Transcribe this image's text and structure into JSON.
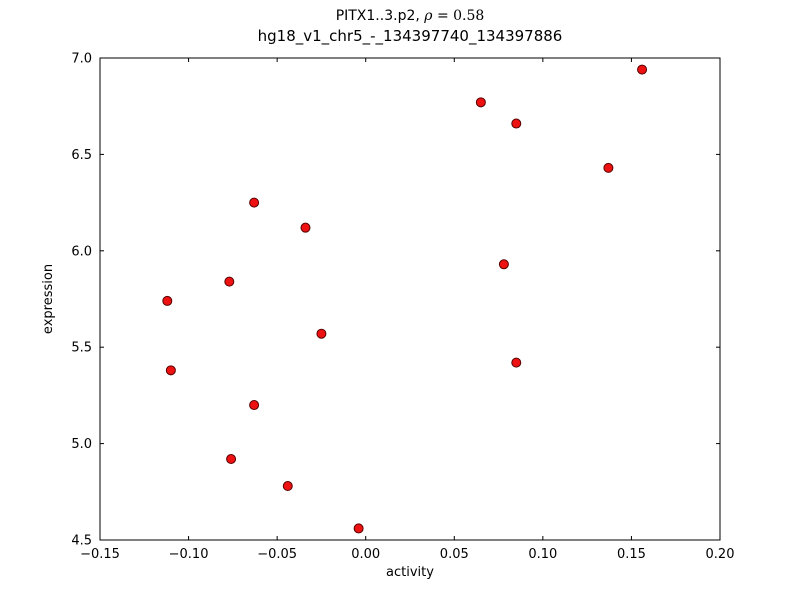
{
  "chart_data": {
    "type": "scatter",
    "title": {
      "prefix": "PITX1..3.p2, ",
      "rho": "ρ",
      "rho_value": " = 0.58",
      "line2": "hg18_v1_chr5_-_134397740_134397886"
    },
    "xlabel": "activity",
    "ylabel": "expression",
    "xlim": [
      -0.15,
      0.2
    ],
    "ylim": [
      4.5,
      7.0
    ],
    "xticks": [
      -0.15,
      -0.1,
      -0.05,
      0.0,
      0.05,
      0.1,
      0.15,
      0.2
    ],
    "xtick_labels": [
      "−0.15",
      "−0.10",
      "−0.05",
      "0.00",
      "0.05",
      "0.10",
      "0.15",
      "0.20"
    ],
    "yticks": [
      4.5,
      5.0,
      5.5,
      6.0,
      6.5,
      7.0
    ],
    "ytick_labels": [
      "4.5",
      "5.0",
      "5.5",
      "6.0",
      "6.5",
      "7.0"
    ],
    "grid": false,
    "legend": null,
    "marker_fill": "#ee1111",
    "marker_edge": "#550000",
    "points": [
      [
        -0.112,
        5.74
      ],
      [
        -0.11,
        5.38
      ],
      [
        -0.077,
        5.84
      ],
      [
        -0.076,
        4.92
      ],
      [
        -0.063,
        6.25
      ],
      [
        -0.063,
        5.2
      ],
      [
        -0.044,
        4.78
      ],
      [
        -0.034,
        6.12
      ],
      [
        -0.025,
        5.57
      ],
      [
        -0.004,
        4.56
      ],
      [
        0.065,
        6.77
      ],
      [
        0.078,
        5.93
      ],
      [
        0.085,
        6.66
      ],
      [
        0.085,
        5.42
      ],
      [
        0.137,
        6.43
      ],
      [
        0.156,
        6.94
      ]
    ]
  }
}
